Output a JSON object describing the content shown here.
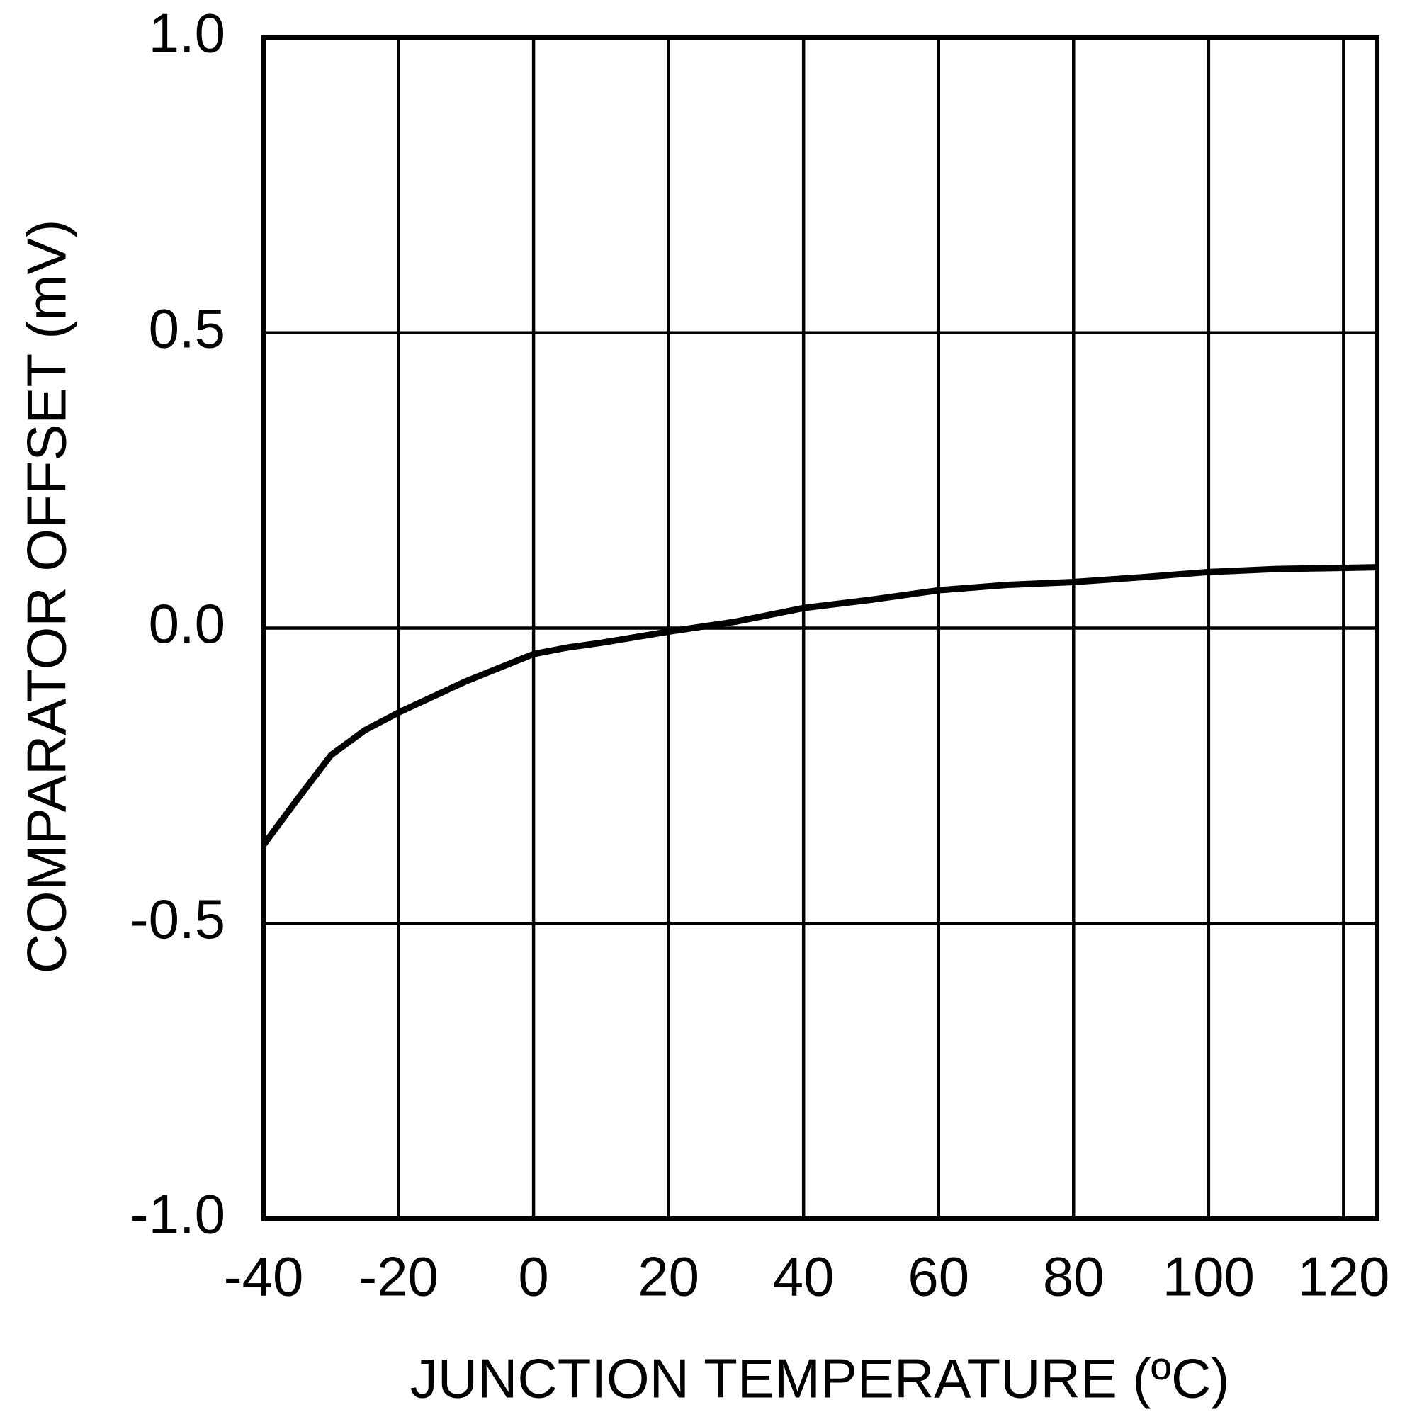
{
  "chart_data": {
    "type": "line",
    "x_label": "JUNCTION TEMPERATURE (ºC)",
    "y_label": "COMPARATOR OFFSET (mV)",
    "x": [
      -40,
      -35,
      -30,
      -25,
      -20,
      -10,
      0,
      5,
      10,
      20,
      30,
      40,
      50,
      60,
      70,
      80,
      90,
      100,
      110,
      125
    ],
    "series": [
      {
        "color": "#000000",
        "values": [
          -0.367,
          -0.29,
          -0.215,
          -0.173,
          -0.143,
          -0.09,
          -0.044,
          -0.033,
          -0.025,
          -0.006,
          0.011,
          0.034,
          0.048,
          0.064,
          0.073,
          0.078,
          0.086,
          0.095,
          0.1,
          0.103
        ]
      }
    ],
    "xlim": [
      -40,
      125
    ],
    "xticks": [
      -40,
      -20,
      0,
      20,
      40,
      60,
      80,
      100,
      120
    ],
    "ylim": [
      -1,
      1
    ],
    "yticks": [
      {
        "value": -1,
        "label": "-1.0"
      },
      -0.5,
      {
        "value": 0,
        "label": "0.0"
      },
      0.5,
      {
        "value": 1,
        "label": "1.0"
      }
    ],
    "grid": true
  }
}
